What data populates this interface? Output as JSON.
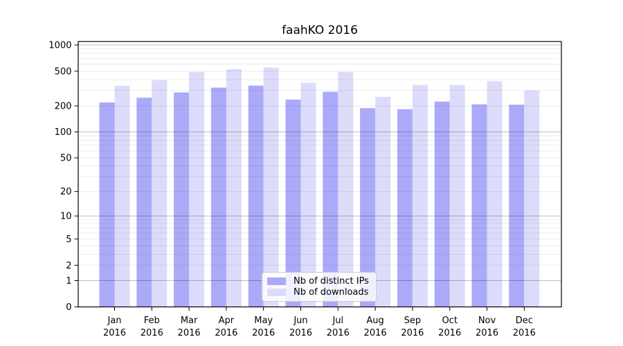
{
  "chart_data": {
    "type": "bar",
    "title": "faahKO 2016",
    "x_axis": {
      "categories": [
        "Jan",
        "Feb",
        "Mar",
        "Apr",
        "May",
        "Jun",
        "Jul",
        "Aug",
        "Sep",
        "Oct",
        "Nov",
        "Dec"
      ],
      "year": "2016"
    },
    "y_axis": {
      "scale": "log1p",
      "tick_values": [
        0,
        1,
        2,
        5,
        10,
        20,
        50,
        100,
        200,
        500,
        1000
      ],
      "range": [
        0,
        1100
      ]
    },
    "series": [
      {
        "name": "Nb of distinct IPs",
        "color": "#aaaaf9",
        "values": [
          219,
          248,
          285,
          324,
          342,
          236,
          290,
          188,
          183,
          224,
          208,
          206
        ]
      },
      {
        "name": "Nb of downloads",
        "color": "#dcdcfa",
        "values": [
          341,
          394,
          489,
          528,
          552,
          368,
          489,
          254,
          348,
          348,
          384,
          301
        ]
      }
    ],
    "legend_position": "inside-lower-center",
    "grid": {
      "major": true,
      "minor": true
    }
  },
  "colors": {
    "background": "#ffffff",
    "spine": "#000000",
    "major_grid": "rgba(0,0,0,0.26)",
    "minor_grid": "rgba(0,0,0,0.08)",
    "text": "#000000",
    "legend_border": "#cccccc"
  }
}
